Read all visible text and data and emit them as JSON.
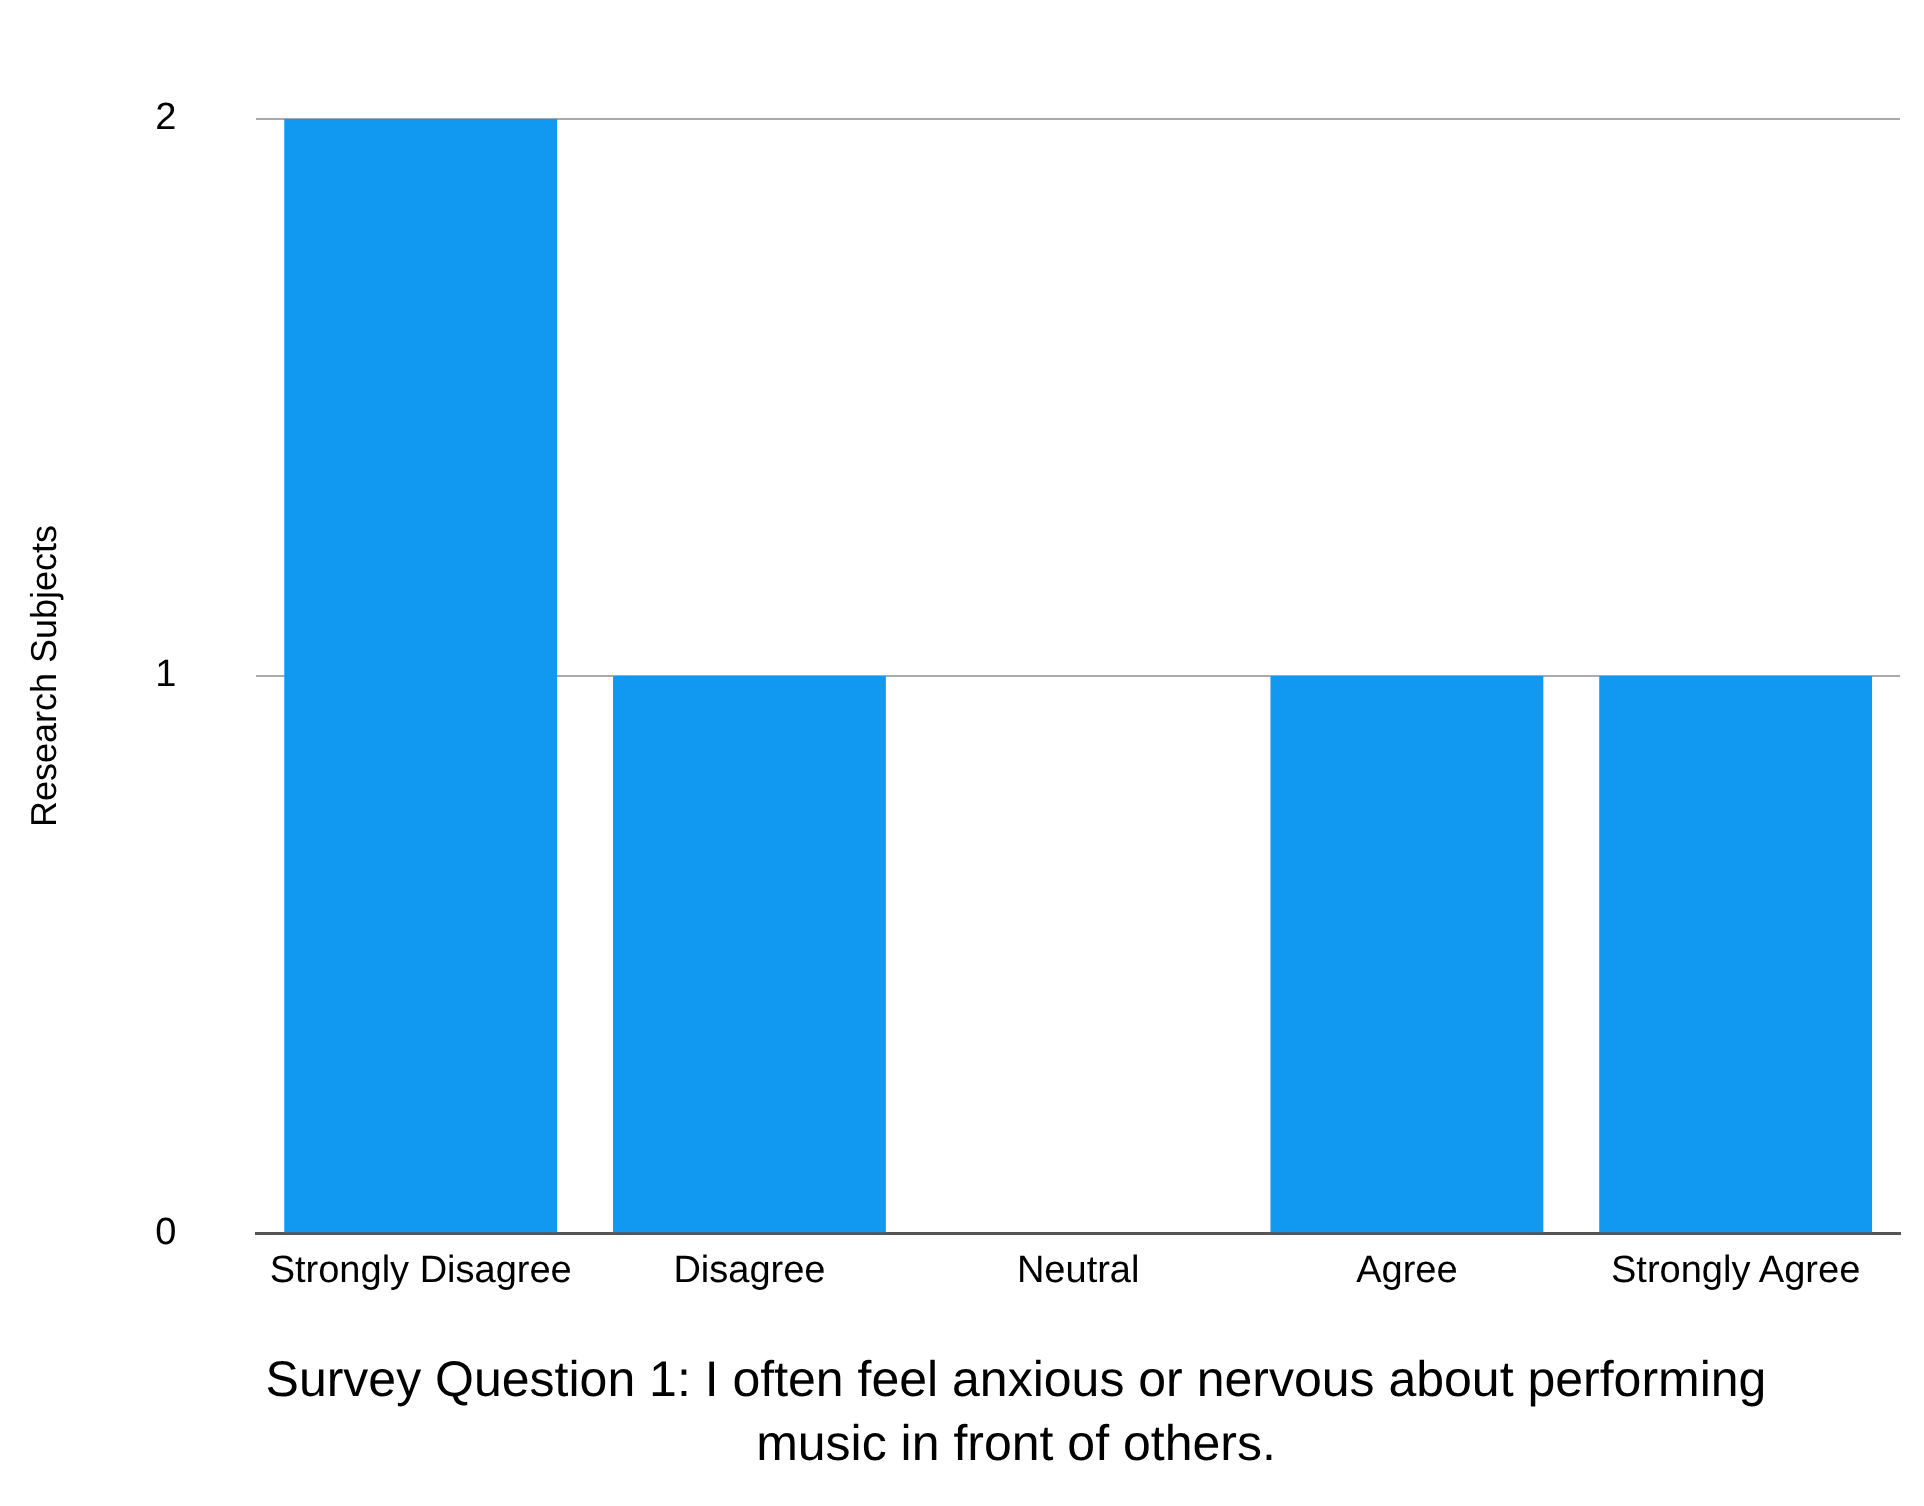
{
  "chart_data": {
    "type": "bar",
    "xlabel": "Survey Question 1: I often feel anxious or nervous about performing music in front of others.",
    "ylabel": "Research Subjects",
    "categories": [
      "Strongly Disagree",
      "Disagree",
      "Neutral",
      "Agree",
      "Strongly Agree"
    ],
    "values": [
      2,
      1,
      0,
      1,
      1
    ],
    "color": "#1199f2",
    "ylim": [
      0,
      2
    ],
    "yticks": [
      0,
      1,
      2
    ],
    "grid": "y",
    "legend": false
  }
}
